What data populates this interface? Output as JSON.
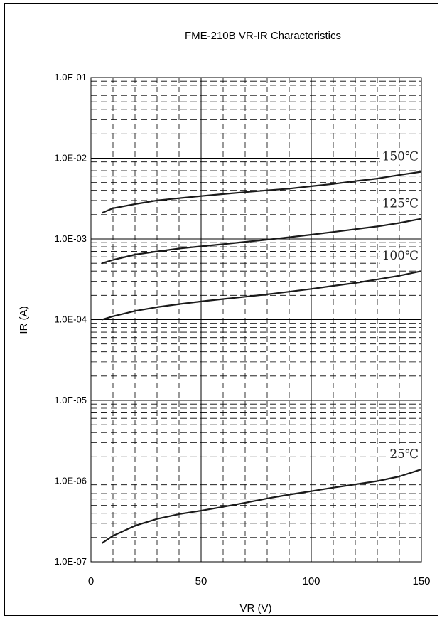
{
  "chart_data": {
    "type": "line",
    "title": "FME-210B VR-IR Characteristics",
    "xlabel": "VR (V)",
    "ylabel": "IR (A)",
    "xlim": [
      0,
      150
    ],
    "ylim": [
      1e-07,
      0.1
    ],
    "yscale": "log",
    "grid": true,
    "x_ticks": [
      0,
      50,
      100,
      150
    ],
    "x_tick_labels": [
      "0",
      "50",
      "100",
      "150"
    ],
    "y_ticks": [
      1e-07,
      1e-06,
      1e-05,
      0.0001,
      0.001,
      0.01,
      0.1
    ],
    "y_tick_labels": [
      "1.0E-07",
      "1.0E-06",
      "1.0E-05",
      "1.0E-04",
      "1.0E-03",
      "1.0E-02",
      "1.0E-01"
    ],
    "series": [
      {
        "name": "150℃",
        "x": [
          5,
          10,
          20,
          30,
          40,
          50,
          60,
          70,
          80,
          90,
          100,
          110,
          120,
          130,
          140,
          150
        ],
        "y": [
          0.0021,
          0.0024,
          0.0027,
          0.003,
          0.0032,
          0.0034,
          0.0036,
          0.0038,
          0.004,
          0.0042,
          0.0045,
          0.0048,
          0.0052,
          0.0056,
          0.0062,
          0.0068
        ]
      },
      {
        "name": "125℃",
        "x": [
          5,
          10,
          20,
          30,
          40,
          50,
          60,
          70,
          80,
          90,
          100,
          110,
          120,
          130,
          140,
          150
        ],
        "y": [
          0.0005,
          0.00055,
          0.00064,
          0.0007,
          0.00076,
          0.00081,
          0.00086,
          0.00092,
          0.00098,
          0.00105,
          0.00113,
          0.00122,
          0.00132,
          0.00143,
          0.00158,
          0.00178
        ]
      },
      {
        "name": "100℃",
        "x": [
          5,
          10,
          20,
          30,
          40,
          50,
          60,
          70,
          80,
          90,
          100,
          110,
          120,
          130,
          140,
          150
        ],
        "y": [
          0.0001,
          0.00011,
          0.000128,
          0.000143,
          0.000156,
          0.000168,
          0.00018,
          0.000192,
          0.000206,
          0.000222,
          0.00024,
          0.000262,
          0.000285,
          0.000315,
          0.00035,
          0.0004
        ]
      },
      {
        "name": "25℃",
        "x": [
          5,
          10,
          20,
          30,
          40,
          50,
          60,
          70,
          80,
          90,
          100,
          110,
          120,
          130,
          140,
          150
        ],
        "y": [
          1.7e-07,
          2.1e-07,
          2.8e-07,
          3.4e-07,
          3.9e-07,
          4.3e-07,
          4.8e-07,
          5.4e-07,
          6.1e-07,
          6.8e-07,
          7.5e-07,
          8.3e-07,
          9.1e-07,
          1e-06,
          1.14e-06,
          1.4e-06
        ]
      }
    ]
  },
  "colors": {
    "line": "#1a1a1a",
    "grid": "#000000",
    "text": "#000000",
    "background": "#ffffff"
  }
}
